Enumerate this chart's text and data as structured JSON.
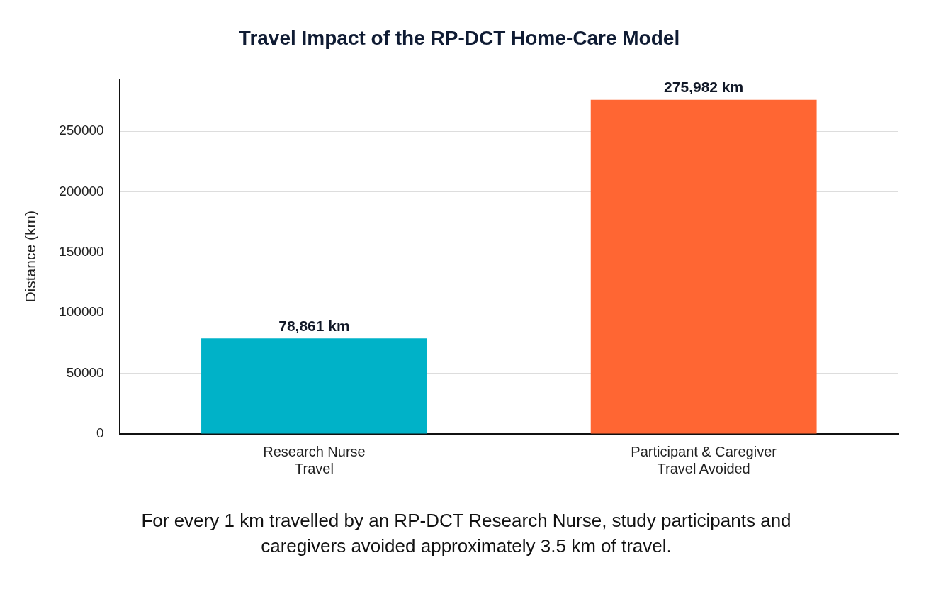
{
  "chart_data": {
    "type": "bar",
    "title": "Travel Impact of the RP-DCT Home-Care Model",
    "categories": [
      "Research Nurse\nTravel",
      "Participant & Caregiver\nTravel Avoided"
    ],
    "values": [
      78861,
      275982
    ],
    "colors": [
      "#00b2c8",
      "#ff6633"
    ],
    "value_labels": [
      "78,861 km",
      "275,982 km"
    ],
    "ylabel": "Distance (km)",
    "ylim": [
      0,
      293000
    ],
    "yticks": [
      0,
      50000,
      100000,
      150000,
      200000,
      250000
    ],
    "grid": "y",
    "annotations": [
      "For every 1 km travelled by an RP-DCT Research Nurse, study participants and caregivers avoided approximately 3.5 km of travel."
    ]
  }
}
